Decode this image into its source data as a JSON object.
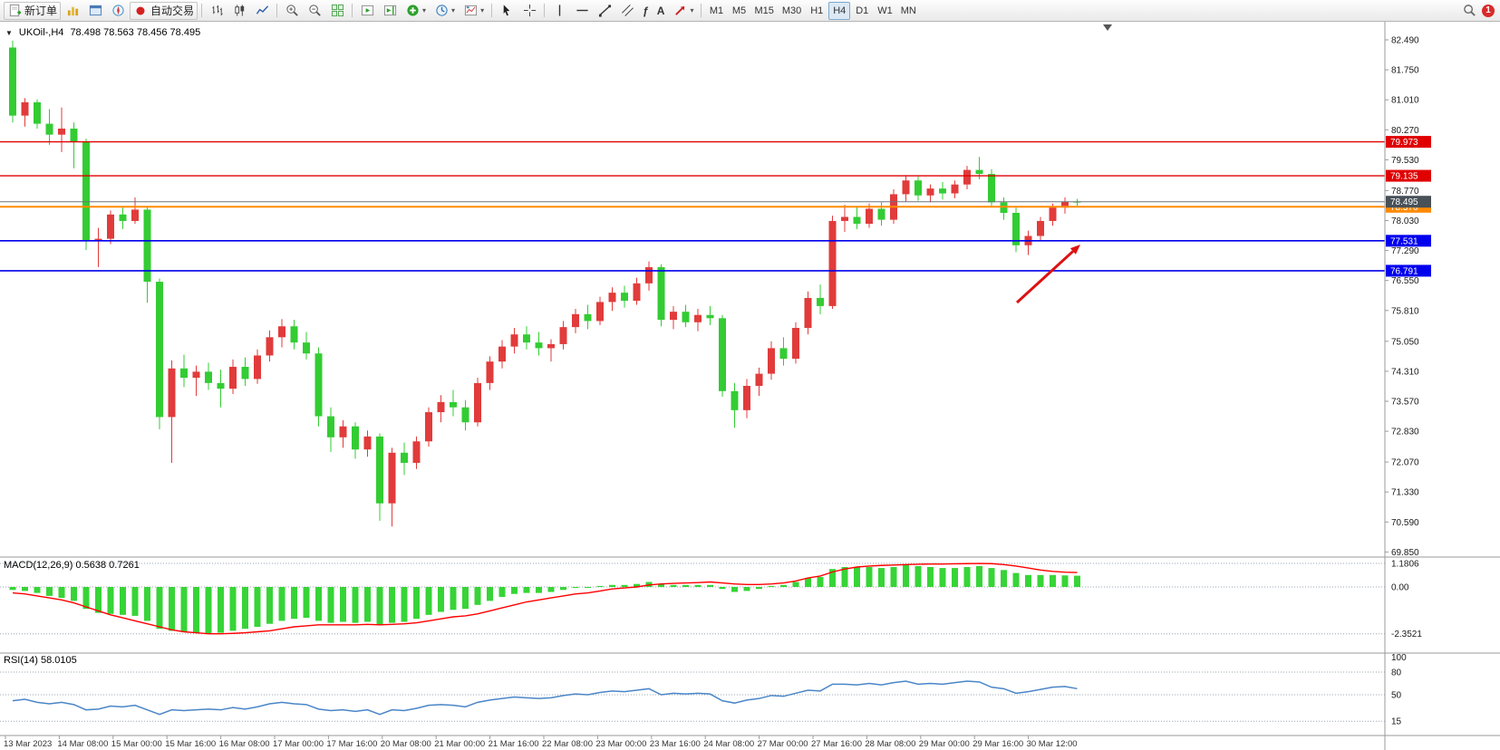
{
  "toolbar": {
    "new_order_label": "新订单",
    "auto_trading_label": "自动交易",
    "timeframes": [
      "M1",
      "M5",
      "M15",
      "M30",
      "H1",
      "H4",
      "D1",
      "W1",
      "MN"
    ],
    "active_timeframe": "H4",
    "notification_count": "1"
  },
  "chart_header": {
    "symbol_period": "UKOil-,H4",
    "ohlc": "78.498 78.563 78.456 78.495"
  },
  "colors": {
    "candle_up": "#e13b3b",
    "candle_down": "#33cc33",
    "macd_histogram": "#37d437",
    "macd_signal": "#ff0000",
    "rsi_line": "#4a86c8",
    "bid_line": "#6a737b",
    "bid_tag_bg": "#485058",
    "level_red": "#e00000",
    "level_orange": "#ff8a00",
    "level_blue": "#0000ee"
  },
  "chart_data": {
    "type": "candlestick",
    "symbol": "UKOil-",
    "timeframe": "H4",
    "price_axis_labels": [
      "82.490",
      "81.750",
      "81.010",
      "80.270",
      "79.530",
      "78.770",
      "78.030",
      "77.290",
      "76.550",
      "75.810",
      "75.050",
      "74.310",
      "73.570",
      "72.830",
      "72.070",
      "71.330",
      "70.590",
      "69.850"
    ],
    "time_axis_labels": [
      "13 Mar 2023",
      "14 Mar 08:00",
      "15 Mar 00:00",
      "15 Mar 16:00",
      "16 Mar 08:00",
      "17 Mar 00:00",
      "17 Mar 16:00",
      "20 Mar 08:00",
      "21 Mar 00:00",
      "21 Mar 16:00",
      "22 Mar 08:00",
      "23 Mar 00:00",
      "23 Mar 16:00",
      "24 Mar 08:00",
      "27 Mar 00:00",
      "27 Mar 16:00",
      "28 Mar 08:00",
      "29 Mar 00:00",
      "29 Mar 16:00",
      "30 Mar 12:00"
    ],
    "levels": [
      {
        "label": "79.973",
        "price": 79.973,
        "color": "#e00000",
        "width": 1.3
      },
      {
        "label": "79.135",
        "price": 79.135,
        "color": "#e00000",
        "width": 1.3
      },
      {
        "label": "78.370",
        "price": 78.37,
        "color": "#ff8a00",
        "width": 2
      },
      {
        "label": "77.531",
        "price": 77.531,
        "color": "#0000ee",
        "width": 1.6
      },
      {
        "label": "76.791",
        "price": 76.791,
        "color": "#0000ee",
        "width": 1.6
      }
    ],
    "bid": {
      "label": "78.495",
      "price": 78.495
    },
    "candles_ohlc": [
      [
        82.3,
        82.47,
        80.45,
        80.62
      ],
      [
        80.62,
        81.05,
        80.35,
        80.95
      ],
      [
        80.95,
        81.02,
        80.3,
        80.42
      ],
      [
        80.42,
        80.78,
        79.9,
        80.15
      ],
      [
        80.15,
        80.82,
        79.72,
        80.3
      ],
      [
        80.3,
        80.45,
        79.32,
        79.98
      ],
      [
        79.98,
        80.05,
        77.3,
        77.52
      ],
      [
        77.52,
        77.85,
        76.88,
        77.58
      ],
      [
        77.58,
        78.28,
        77.45,
        78.18
      ],
      [
        78.18,
        78.36,
        77.82,
        78.02
      ],
      [
        78.02,
        78.6,
        77.95,
        78.3
      ],
      [
        78.3,
        78.38,
        76.0,
        76.52
      ],
      [
        76.52,
        76.6,
        72.88,
        73.18
      ],
      [
        73.18,
        74.58,
        72.05,
        74.38
      ],
      [
        74.38,
        74.72,
        73.92,
        74.15
      ],
      [
        74.15,
        74.45,
        73.7,
        74.3
      ],
      [
        74.3,
        74.52,
        73.85,
        74.02
      ],
      [
        74.02,
        74.35,
        73.42,
        73.88
      ],
      [
        73.88,
        74.6,
        73.75,
        74.42
      ],
      [
        74.42,
        74.65,
        73.95,
        74.12
      ],
      [
        74.12,
        74.85,
        74.0,
        74.7
      ],
      [
        74.7,
        75.32,
        74.55,
        75.15
      ],
      [
        75.15,
        75.6,
        74.9,
        75.42
      ],
      [
        75.42,
        75.58,
        74.85,
        75.02
      ],
      [
        75.02,
        75.28,
        74.6,
        74.75
      ],
      [
        74.75,
        74.9,
        72.95,
        73.2
      ],
      [
        73.2,
        73.42,
        72.32,
        72.68
      ],
      [
        72.68,
        73.1,
        72.42,
        72.95
      ],
      [
        72.95,
        73.05,
        72.15,
        72.38
      ],
      [
        72.38,
        72.85,
        72.2,
        72.7
      ],
      [
        72.7,
        72.78,
        70.62,
        71.05
      ],
      [
        71.05,
        72.42,
        70.48,
        72.3
      ],
      [
        72.3,
        72.55,
        71.75,
        72.05
      ],
      [
        72.05,
        72.7,
        71.9,
        72.58
      ],
      [
        72.58,
        73.42,
        72.45,
        73.3
      ],
      [
        73.3,
        73.72,
        73.05,
        73.55
      ],
      [
        73.55,
        73.85,
        73.2,
        73.42
      ],
      [
        73.42,
        73.6,
        72.85,
        73.05
      ],
      [
        73.05,
        74.15,
        72.95,
        74.02
      ],
      [
        74.02,
        74.68,
        73.85,
        74.55
      ],
      [
        74.55,
        75.08,
        74.38,
        74.92
      ],
      [
        74.92,
        75.38,
        74.75,
        75.22
      ],
      [
        75.22,
        75.42,
        74.85,
        75.02
      ],
      [
        75.02,
        75.28,
        74.7,
        74.88
      ],
      [
        74.88,
        75.1,
        74.55,
        74.98
      ],
      [
        74.98,
        75.55,
        74.85,
        75.4
      ],
      [
        75.4,
        75.85,
        75.25,
        75.72
      ],
      [
        75.72,
        75.95,
        75.35,
        75.55
      ],
      [
        75.55,
        76.15,
        75.45,
        76.02
      ],
      [
        76.02,
        76.38,
        75.8,
        76.25
      ],
      [
        76.25,
        76.42,
        75.88,
        76.05
      ],
      [
        76.05,
        76.62,
        75.95,
        76.48
      ],
      [
        76.48,
        77.02,
        76.3,
        76.88
      ],
      [
        76.88,
        76.95,
        75.42,
        75.58
      ],
      [
        75.58,
        75.92,
        75.35,
        75.78
      ],
      [
        75.78,
        75.95,
        75.4,
        75.52
      ],
      [
        75.52,
        75.85,
        75.3,
        75.7
      ],
      [
        75.7,
        75.92,
        75.45,
        75.62
      ],
      [
        75.62,
        75.7,
        73.68,
        73.82
      ],
      [
        73.82,
        74.02,
        72.92,
        73.35
      ],
      [
        73.35,
        74.12,
        73.15,
        73.95
      ],
      [
        73.95,
        74.4,
        73.7,
        74.25
      ],
      [
        74.25,
        75.05,
        74.1,
        74.88
      ],
      [
        74.88,
        75.15,
        74.45,
        74.62
      ],
      [
        74.62,
        75.52,
        74.5,
        75.38
      ],
      [
        75.38,
        76.28,
        75.22,
        76.12
      ],
      [
        76.12,
        76.45,
        75.72,
        75.92
      ],
      [
        75.92,
        78.15,
        75.85,
        78.02
      ],
      [
        78.02,
        78.42,
        77.75,
        78.12
      ],
      [
        78.12,
        78.38,
        77.82,
        77.95
      ],
      [
        77.95,
        78.45,
        77.85,
        78.32
      ],
      [
        78.32,
        78.48,
        77.9,
        78.05
      ],
      [
        78.05,
        78.8,
        77.95,
        78.68
      ],
      [
        78.68,
        79.15,
        78.5,
        79.02
      ],
      [
        79.02,
        79.12,
        78.52,
        78.65
      ],
      [
        78.65,
        78.92,
        78.48,
        78.82
      ],
      [
        78.82,
        78.98,
        78.55,
        78.7
      ],
      [
        78.7,
        79.02,
        78.58,
        78.92
      ],
      [
        78.92,
        79.38,
        78.8,
        79.28
      ],
      [
        79.28,
        79.6,
        79.05,
        79.18
      ],
      [
        79.18,
        79.3,
        78.35,
        78.48
      ],
      [
        78.48,
        78.6,
        78.05,
        78.22
      ],
      [
        78.22,
        78.35,
        77.25,
        77.42
      ],
      [
        77.42,
        77.78,
        77.18,
        77.65
      ],
      [
        77.65,
        78.12,
        77.52,
        78.02
      ],
      [
        78.02,
        78.45,
        77.9,
        78.35
      ],
      [
        78.35,
        78.6,
        78.2,
        78.5
      ],
      [
        78.5,
        78.563,
        78.4,
        78.495
      ]
    ],
    "macd": {
      "header": "MACD(12,26,9) 0.5638 0.7261",
      "axis_labels": [
        "1.1806",
        "0.00",
        "-2.3521"
      ],
      "axis_values": [
        1.1806,
        0,
        -2.3521
      ],
      "histogram": [
        -0.15,
        -0.2,
        -0.3,
        -0.45,
        -0.55,
        -0.7,
        -1.1,
        -1.3,
        -1.35,
        -1.4,
        -1.45,
        -1.7,
        -2.1,
        -2.2,
        -2.25,
        -2.3,
        -2.35,
        -2.3,
        -2.2,
        -2.1,
        -2.0,
        -1.85,
        -1.7,
        -1.6,
        -1.55,
        -1.7,
        -1.8,
        -1.75,
        -1.8,
        -1.75,
        -1.9,
        -1.8,
        -1.75,
        -1.6,
        -1.4,
        -1.25,
        -1.15,
        -1.1,
        -0.9,
        -0.7,
        -0.5,
        -0.35,
        -0.3,
        -0.3,
        -0.25,
        -0.15,
        -0.05,
        -0.05,
        0.05,
        0.1,
        0.1,
        0.15,
        0.25,
        0.15,
        0.1,
        0.1,
        0.1,
        0.1,
        -0.1,
        -0.25,
        -0.2,
        -0.1,
        0.05,
        0.1,
        0.25,
        0.45,
        0.5,
        0.9,
        1.0,
        1.0,
        1.0,
        0.95,
        1.0,
        1.1,
        1.05,
        1.0,
        0.95,
        0.95,
        1.0,
        1.05,
        0.95,
        0.85,
        0.7,
        0.6,
        0.6,
        0.6,
        0.58,
        0.5638
      ],
      "signal": [
        -0.3,
        -0.35,
        -0.45,
        -0.55,
        -0.65,
        -0.8,
        -1.0,
        -1.2,
        -1.4,
        -1.55,
        -1.7,
        -1.85,
        -2.0,
        -2.15,
        -2.25,
        -2.3,
        -2.35,
        -2.35,
        -2.33,
        -2.3,
        -2.25,
        -2.2,
        -2.1,
        -2.0,
        -1.95,
        -1.9,
        -1.9,
        -1.9,
        -1.9,
        -1.88,
        -1.9,
        -1.88,
        -1.85,
        -1.8,
        -1.7,
        -1.6,
        -1.5,
        -1.45,
        -1.35,
        -1.2,
        -1.05,
        -0.9,
        -0.75,
        -0.65,
        -0.55,
        -0.45,
        -0.35,
        -0.3,
        -0.2,
        -0.1,
        -0.05,
        0.0,
        0.1,
        0.15,
        0.18,
        0.2,
        0.22,
        0.25,
        0.2,
        0.15,
        0.12,
        0.12,
        0.15,
        0.2,
        0.3,
        0.45,
        0.55,
        0.75,
        0.9,
        1.0,
        1.05,
        1.08,
        1.1,
        1.12,
        1.14,
        1.15,
        1.15,
        1.16,
        1.17,
        1.18,
        1.17,
        1.12,
        1.05,
        0.95,
        0.85,
        0.78,
        0.74,
        0.7261
      ]
    },
    "rsi": {
      "header": "RSI(14) 58.0105",
      "axis_labels": [
        "100",
        "80",
        "50",
        "15"
      ],
      "axis_values": [
        100,
        80,
        50,
        15
      ],
      "values": [
        42,
        44,
        40,
        38,
        40,
        37,
        30,
        31,
        35,
        34,
        36,
        30,
        24,
        30,
        29,
        30,
        31,
        30,
        33,
        31,
        34,
        38,
        40,
        38,
        37,
        31,
        29,
        30,
        28,
        30,
        24,
        30,
        29,
        32,
        36,
        37,
        36,
        34,
        40,
        43,
        45,
        47,
        46,
        45,
        46,
        49,
        51,
        50,
        53,
        55,
        54,
        56,
        58,
        50,
        52,
        51,
        52,
        51,
        42,
        39,
        43,
        45,
        49,
        48,
        52,
        56,
        55,
        64,
        64,
        63,
        65,
        63,
        66,
        68,
        64,
        65,
        64,
        66,
        68,
        67,
        60,
        58,
        52,
        54,
        57,
        60,
        61,
        58.01
      ]
    },
    "annotation_arrow": {
      "from": [
        1122,
        310
      ],
      "to": [
        1192,
        246
      ],
      "color": "#dd1111"
    }
  }
}
